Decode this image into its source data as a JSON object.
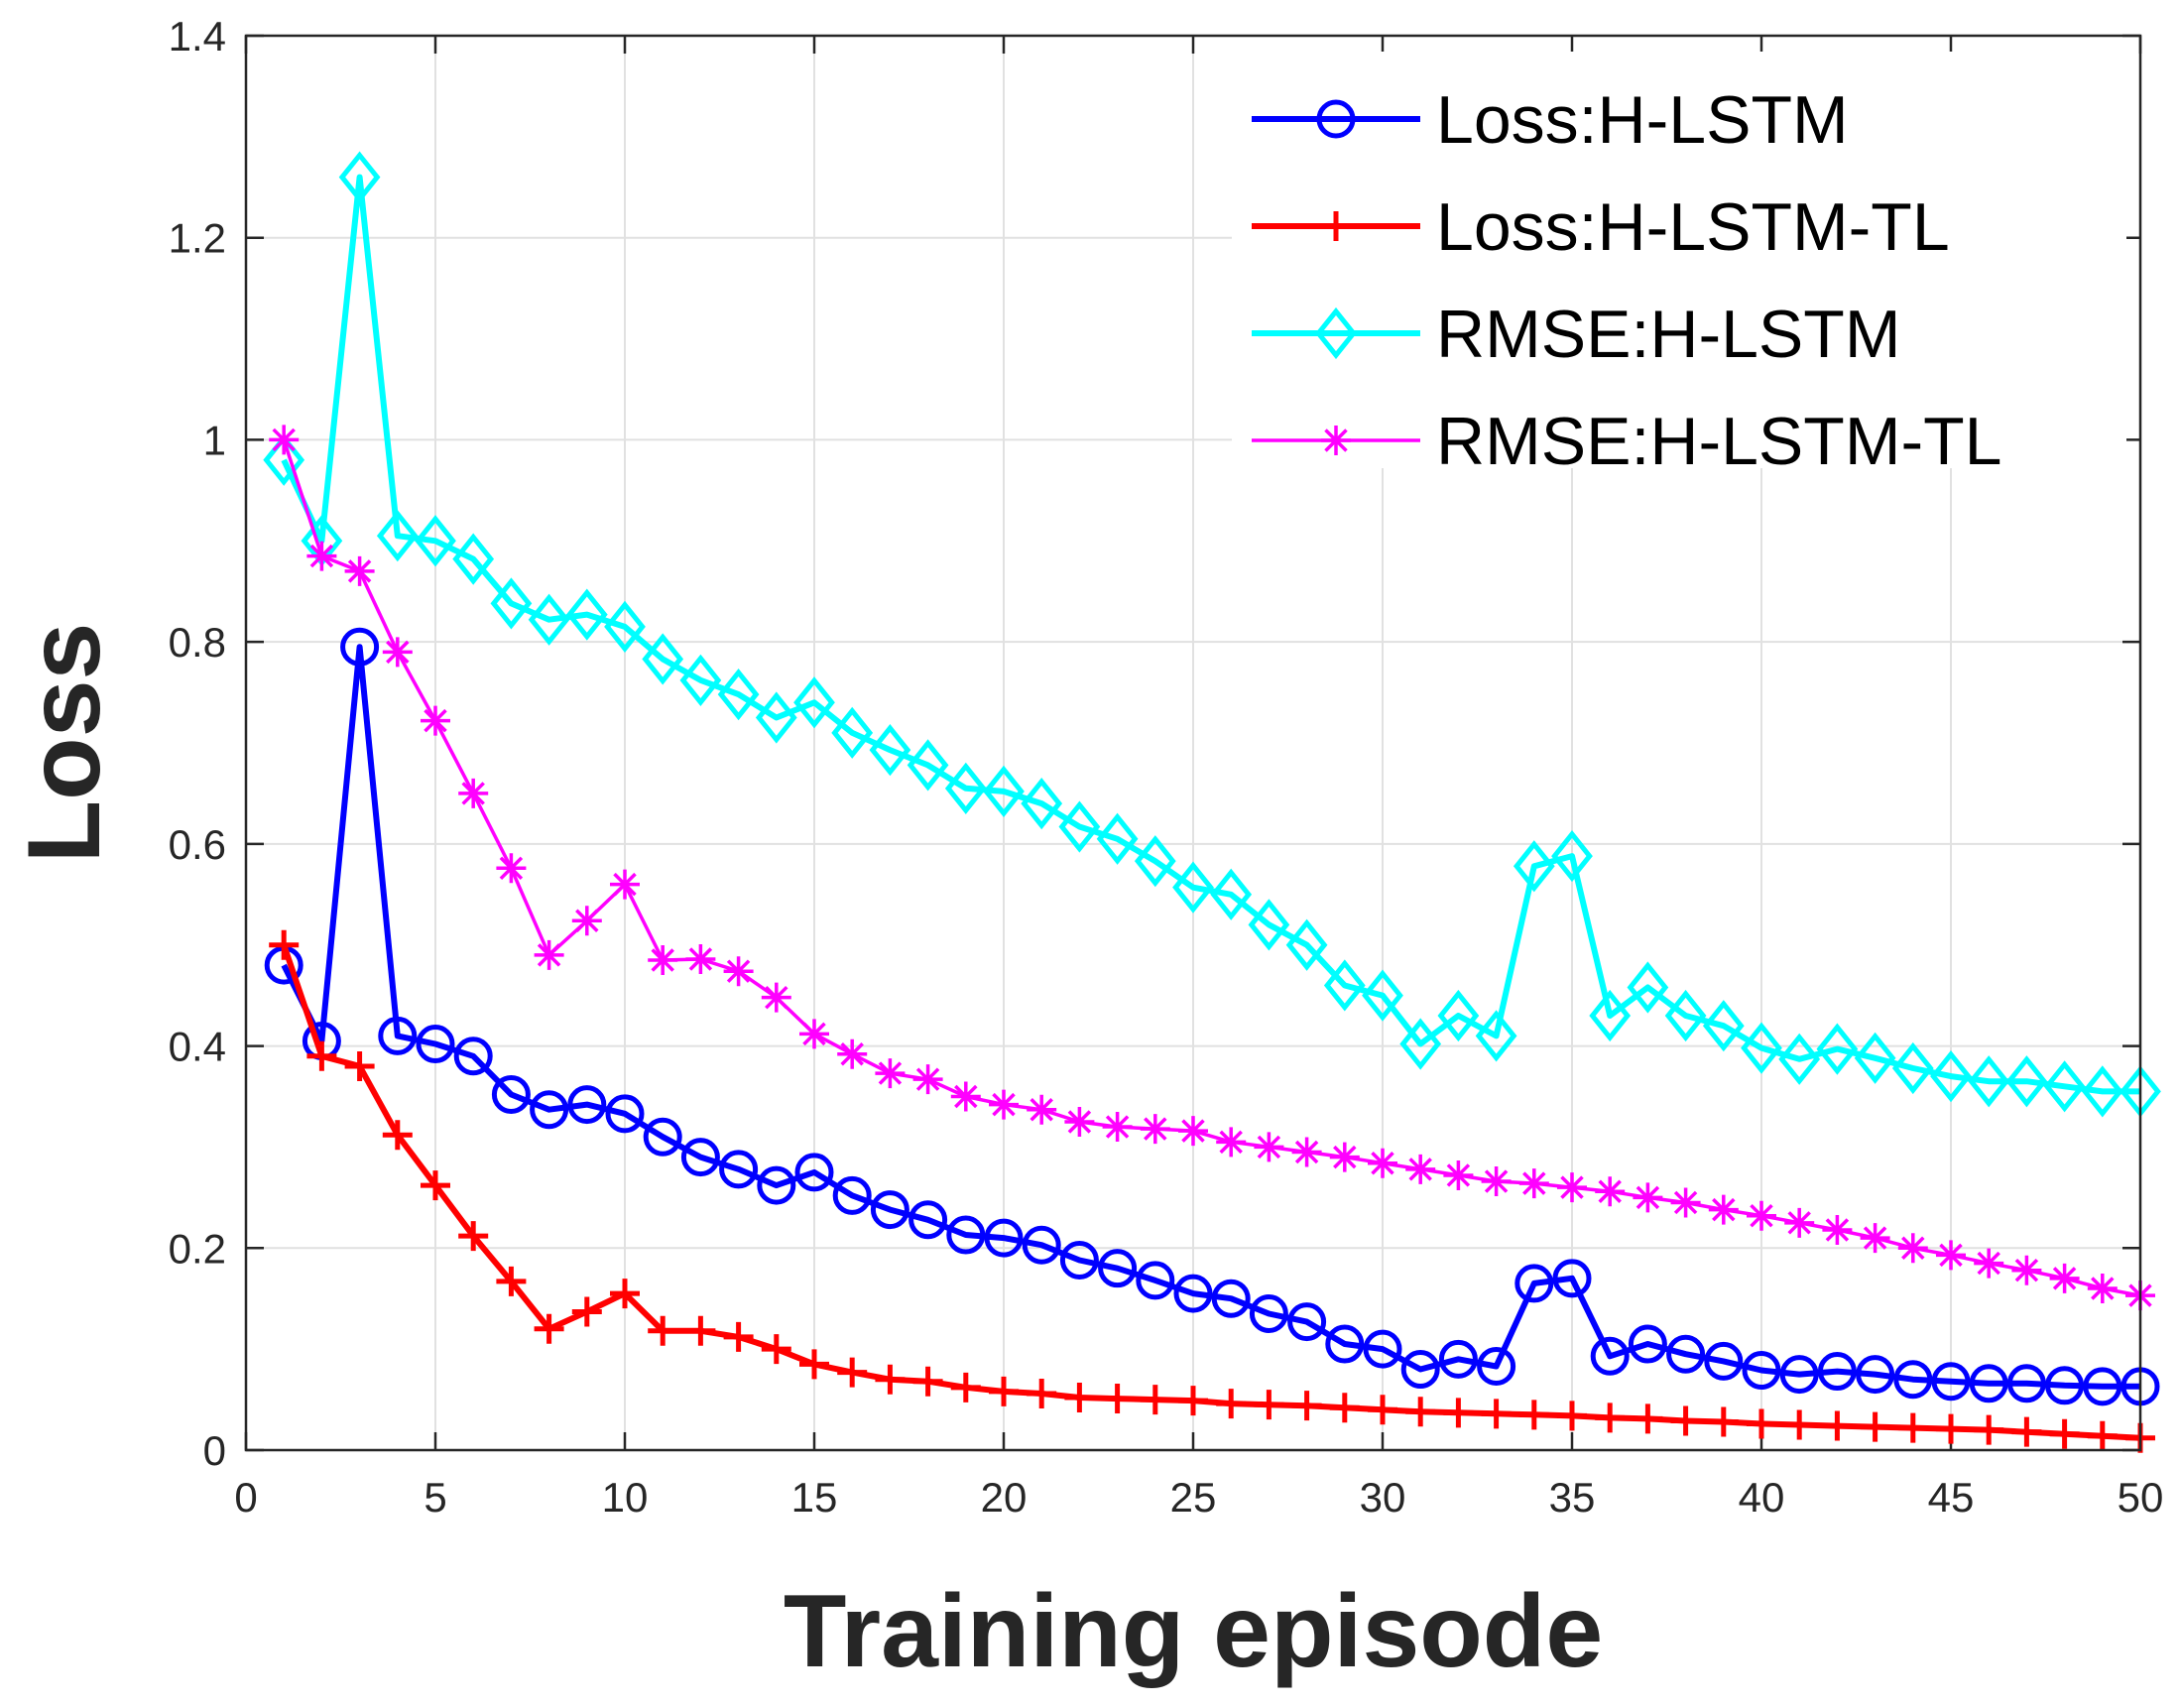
{
  "chart_data": {
    "type": "line",
    "title": "",
    "xlabel": "Training episode",
    "ylabel": "Loss",
    "xlim": [
      0,
      50
    ],
    "ylim": [
      0,
      1.4
    ],
    "xticks": [
      0,
      5,
      10,
      15,
      20,
      25,
      30,
      35,
      40,
      45,
      50
    ],
    "xtick_labels": [
      "0",
      "5",
      "10",
      "15",
      "20",
      "25",
      "30",
      "35",
      "40",
      "45",
      "50"
    ],
    "yticks": [
      0,
      0.2,
      0.4,
      0.6,
      0.8,
      1,
      1.2,
      1.4
    ],
    "ytick_labels": [
      "0",
      "0.2",
      "0.4",
      "0.6",
      "0.8",
      "1",
      "1.2",
      "1.4"
    ],
    "grid": true,
    "legend_position": "top-right",
    "x": [
      1,
      2,
      3,
      4,
      5,
      6,
      7,
      8,
      9,
      10,
      11,
      12,
      13,
      14,
      15,
      16,
      17,
      18,
      19,
      20,
      21,
      22,
      23,
      24,
      25,
      26,
      27,
      28,
      29,
      30,
      31,
      32,
      33,
      34,
      35,
      36,
      37,
      38,
      39,
      40,
      41,
      42,
      43,
      44,
      45,
      46,
      47,
      48,
      49,
      50
    ],
    "series": [
      {
        "name": "Loss:H-LSTM",
        "color": "#0000ff",
        "marker": "circle",
        "values": [
          0.48,
          0.405,
          0.795,
          0.41,
          0.402,
          0.39,
          0.352,
          0.337,
          0.342,
          0.333,
          0.31,
          0.29,
          0.278,
          0.262,
          0.275,
          0.252,
          0.238,
          0.228,
          0.213,
          0.21,
          0.203,
          0.188,
          0.18,
          0.168,
          0.155,
          0.15,
          0.135,
          0.127,
          0.105,
          0.1,
          0.08,
          0.09,
          0.083,
          0.165,
          0.17,
          0.093,
          0.105,
          0.095,
          0.088,
          0.079,
          0.075,
          0.078,
          0.075,
          0.07,
          0.068,
          0.066,
          0.066,
          0.064,
          0.063,
          0.063
        ]
      },
      {
        "name": "Loss:H-LSTM-TL",
        "color": "#ff0000",
        "marker": "plus",
        "values": [
          0.5,
          0.39,
          0.38,
          0.312,
          0.262,
          0.212,
          0.167,
          0.12,
          0.137,
          0.155,
          0.118,
          0.118,
          0.112,
          0.1,
          0.085,
          0.077,
          0.07,
          0.068,
          0.062,
          0.058,
          0.056,
          0.052,
          0.051,
          0.05,
          0.049,
          0.046,
          0.045,
          0.044,
          0.042,
          0.04,
          0.038,
          0.037,
          0.036,
          0.035,
          0.034,
          0.032,
          0.031,
          0.029,
          0.028,
          0.026,
          0.025,
          0.024,
          0.023,
          0.022,
          0.021,
          0.02,
          0.018,
          0.016,
          0.014,
          0.012
        ]
      },
      {
        "name": "RMSE:H-LSTM",
        "color": "#00ffff",
        "marker": "diamond",
        "values": [
          0.98,
          0.9,
          1.26,
          0.905,
          0.9,
          0.882,
          0.838,
          0.822,
          0.827,
          0.815,
          0.783,
          0.762,
          0.748,
          0.725,
          0.74,
          0.71,
          0.693,
          0.678,
          0.655,
          0.652,
          0.64,
          0.617,
          0.605,
          0.583,
          0.557,
          0.55,
          0.52,
          0.5,
          0.46,
          0.45,
          0.402,
          0.43,
          0.41,
          0.578,
          0.588,
          0.43,
          0.458,
          0.43,
          0.42,
          0.398,
          0.387,
          0.397,
          0.388,
          0.378,
          0.37,
          0.365,
          0.365,
          0.36,
          0.355,
          0.355
        ]
      },
      {
        "name": "RMSE:H-LSTM-TL",
        "color": "#ff00ff",
        "marker": "asterisk",
        "values": [
          1.0,
          0.885,
          0.87,
          0.79,
          0.722,
          0.65,
          0.576,
          0.49,
          0.524,
          0.56,
          0.485,
          0.486,
          0.474,
          0.448,
          0.412,
          0.392,
          0.373,
          0.367,
          0.35,
          0.342,
          0.337,
          0.325,
          0.32,
          0.318,
          0.316,
          0.305,
          0.3,
          0.295,
          0.29,
          0.284,
          0.278,
          0.272,
          0.266,
          0.264,
          0.26,
          0.256,
          0.25,
          0.245,
          0.238,
          0.232,
          0.225,
          0.218,
          0.21,
          0.2,
          0.193,
          0.185,
          0.178,
          0.17,
          0.16,
          0.153
        ]
      }
    ]
  }
}
